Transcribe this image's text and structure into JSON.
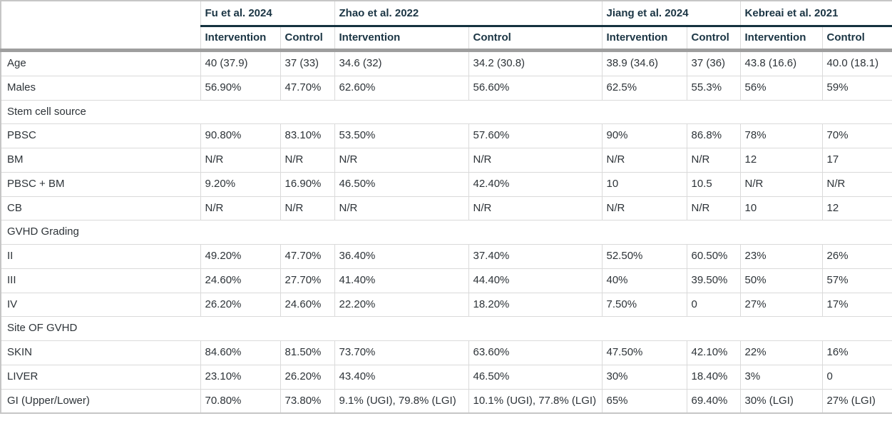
{
  "table": {
    "corner_label": "",
    "studies": [
      {
        "name": "Fu et al. 2024",
        "columns": [
          "Intervention",
          "Control"
        ]
      },
      {
        "name": "Zhao et al. 2022",
        "columns": [
          "Intervention",
          "Control"
        ]
      },
      {
        "name": "Jiang et al. 2024",
        "columns": [
          "Intervention",
          "Control"
        ]
      },
      {
        "name": "Kebreai et al. 2021",
        "columns": [
          "Intervention",
          "Control"
        ]
      }
    ],
    "rows": [
      {
        "type": "data",
        "label": "Age",
        "values": [
          "40 (37.9)",
          "37 (33)",
          "34.6 (32)",
          "34.2 (30.8)",
          "38.9 (34.6)",
          "37 (36)",
          "43.8 (16.6)",
          "40.0 (18.1)"
        ]
      },
      {
        "type": "data",
        "label": "Males",
        "values": [
          "56.90%",
          "47.70%",
          "62.60%",
          "56.60%",
          "62.5%",
          "55.3%",
          "56%",
          "59%"
        ]
      },
      {
        "type": "section",
        "label": "Stem cell source"
      },
      {
        "type": "data",
        "label": "PBSC",
        "values": [
          "90.80%",
          "83.10%",
          "53.50%",
          "57.60%",
          "90%",
          "86.8%",
          "78%",
          "70%"
        ]
      },
      {
        "type": "data",
        "label": "BM",
        "values": [
          "N/R",
          "N/R",
          "N/R",
          "N/R",
          "N/R",
          "N/R",
          "12",
          "17"
        ]
      },
      {
        "type": "data",
        "label": "PBSC + BM",
        "values": [
          "9.20%",
          "16.90%",
          "46.50%",
          "42.40%",
          "10",
          "10.5",
          "N/R",
          "N/R"
        ]
      },
      {
        "type": "data",
        "label": "CB",
        "values": [
          "N/R",
          "N/R",
          "N/R",
          "N/R",
          "N/R",
          "N/R",
          "10",
          "12"
        ]
      },
      {
        "type": "section",
        "label": "GVHD Grading"
      },
      {
        "type": "data",
        "label": "II",
        "values": [
          "49.20%",
          "47.70%",
          "36.40%",
          "37.40%",
          "52.50%",
          "60.50%",
          "23%",
          "26%"
        ]
      },
      {
        "type": "data",
        "label": "III",
        "values": [
          "24.60%",
          "27.70%",
          "41.40%",
          "44.40%",
          "40%",
          "39.50%",
          "50%",
          "57%"
        ]
      },
      {
        "type": "data",
        "label": "IV",
        "values": [
          "26.20%",
          "24.60%",
          "22.20%",
          "18.20%",
          "7.50%",
          "0",
          "27%",
          "17%"
        ]
      },
      {
        "type": "section",
        "label": "Site OF GVHD"
      },
      {
        "type": "data",
        "label": "SKIN",
        "values": [
          "84.60%",
          "81.50%",
          "73.70%",
          "63.60%",
          "47.50%",
          "42.10%",
          "22%",
          "16%"
        ]
      },
      {
        "type": "data",
        "label": "LIVER",
        "values": [
          "23.10%",
          "26.20%",
          "43.40%",
          "46.50%",
          "30%",
          "18.40%",
          "3%",
          "0"
        ]
      },
      {
        "type": "data",
        "label": "GI (Upper/Lower)",
        "values": [
          "70.80%",
          "73.80%",
          "9.1% (UGI), 79.8% (LGI)",
          "10.1% (UGI), 77.8% (LGI)",
          "65%",
          "69.40%",
          "30% (LGI)",
          "27% (LGI)"
        ]
      }
    ]
  },
  "colors": {
    "accent_teal": "#14323f",
    "header_bar_gray": "#9e9e9e",
    "grid_border": "#dadada",
    "outer_border": "#c6c6c6",
    "header_text": "#1b3544",
    "body_text": "#2d3338"
  }
}
